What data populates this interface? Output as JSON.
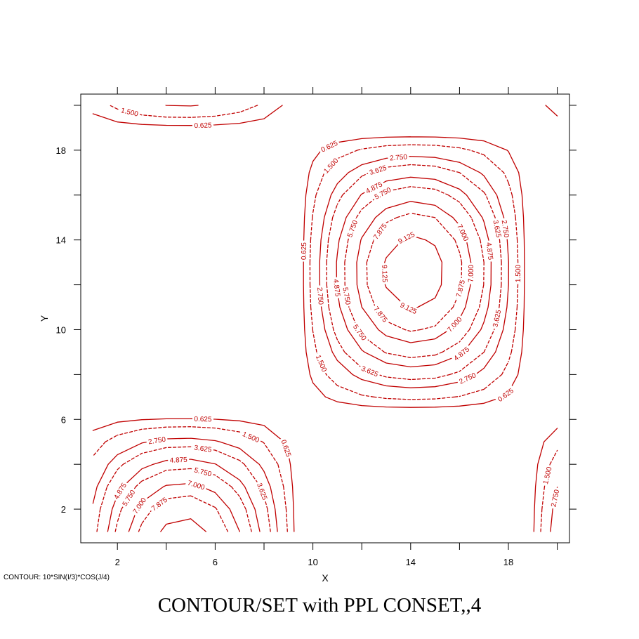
{
  "chart_data": {
    "type": "contour",
    "title": "CONTOUR/SET with PPL CONSET,,4",
    "footnote": "CONTOUR: 10*SIN(I/3)*COS(J/4)",
    "xlabel": "X",
    "ylabel": "Y",
    "xlim": [
      0.5,
      20.5
    ],
    "ylim": [
      0.5,
      20.5
    ],
    "xticks": [
      2,
      6,
      10,
      14,
      18
    ],
    "yticks": [
      2,
      6,
      10,
      14,
      18
    ],
    "grid": false,
    "line_color": "#c00000",
    "negative_dashed": false,
    "dashed_levels": [
      1.5,
      3.625,
      5.75,
      7.875
    ],
    "levels": [
      0.625,
      1.5,
      2.75,
      3.625,
      4.875,
      5.75,
      7.0,
      7.875,
      9.125
    ],
    "level_labels": [
      "0.625",
      "1.500",
      "2.750",
      "3.625",
      "4.875",
      "5.750",
      "7.000",
      "7.875",
      "9.125"
    ],
    "function": "10*SIN(I/3)*COS(J/4)",
    "x_range": [
      1,
      20
    ],
    "y_range": [
      1,
      20
    ]
  }
}
